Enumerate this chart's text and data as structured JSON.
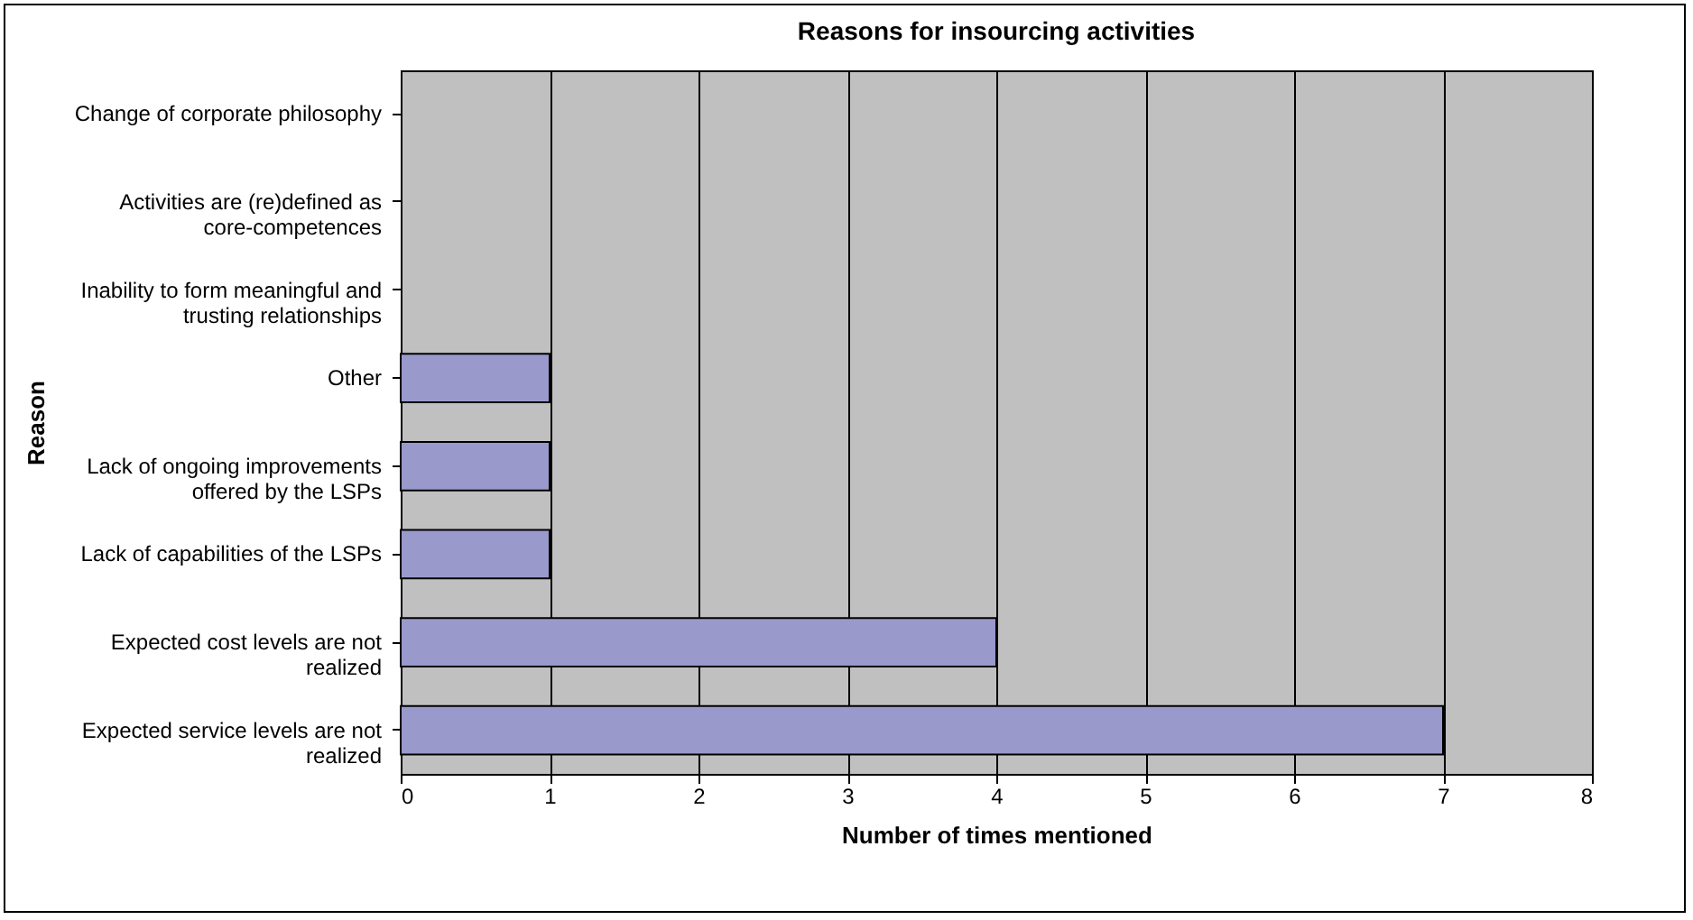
{
  "chart_data": {
    "type": "bar",
    "orientation": "horizontal",
    "title": "Reasons for insourcing activities",
    "xlabel": "Number of times mentioned",
    "ylabel": "Reason",
    "categories": [
      "Change of corporate philosophy",
      "Activities are (re)defined as core-competences",
      "Inability to form meaningful and trusting relationships",
      "Other",
      "Lack of ongoing improvements offered by the LSPs",
      "Lack of capabilities of the LSPs",
      "Expected cost levels are not realized",
      "Expected service levels are not realized"
    ],
    "values": [
      0,
      0,
      0,
      1,
      1,
      1,
      4,
      7
    ],
    "color": "#9999cc",
    "xlim": [
      0,
      8
    ],
    "xticks": [
      0,
      1,
      2,
      3,
      4,
      5,
      6,
      7,
      8
    ],
    "grid": "x"
  }
}
